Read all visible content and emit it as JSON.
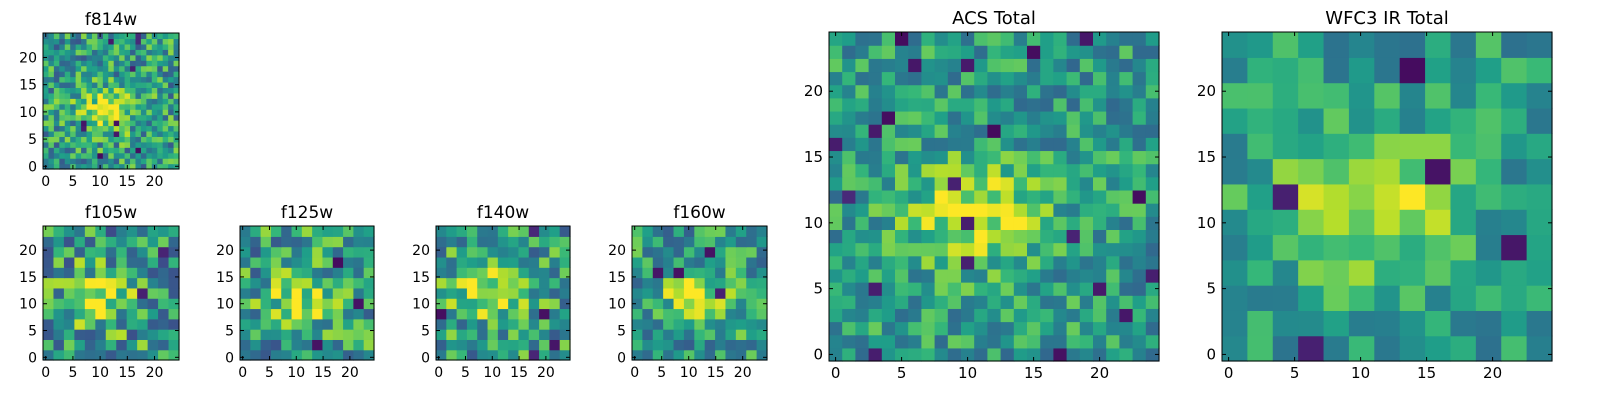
{
  "chart_data": [
    {
      "type": "heatmap",
      "title": "f814w",
      "xticks": [
        "0",
        "5",
        "10",
        "15",
        "20"
      ],
      "yticks": [
        "0",
        "5",
        "10",
        "15",
        "20"
      ],
      "xlim": [
        0,
        25
      ],
      "ylim": [
        0,
        25
      ],
      "grid": "25x25",
      "colormap": "viridis",
      "source_center": [
        12,
        11
      ],
      "source_width": 3.5,
      "noise": 0.28,
      "seed": 11
    },
    {
      "type": "heatmap",
      "title": "f105w",
      "xticks": [
        "0",
        "5",
        "10",
        "15",
        "20"
      ],
      "yticks": [
        "0",
        "5",
        "10",
        "15",
        "20"
      ],
      "xlim": [
        0,
        25
      ],
      "ylim": [
        0,
        25
      ],
      "grid": "13x13",
      "colormap": "viridis",
      "source_center": [
        11,
        12
      ],
      "source_width": 4,
      "noise": 0.32,
      "seed": 23
    },
    {
      "type": "heatmap",
      "title": "f125w",
      "xticks": [
        "0",
        "5",
        "10",
        "15",
        "20"
      ],
      "yticks": [
        "0",
        "5",
        "10",
        "15",
        "20"
      ],
      "xlim": [
        0,
        25
      ],
      "ylim": [
        0,
        25
      ],
      "grid": "13x13",
      "colormap": "viridis",
      "source_center": [
        11,
        11
      ],
      "source_width": 4,
      "noise": 0.3,
      "seed": 37
    },
    {
      "type": "heatmap",
      "title": "f140w",
      "xticks": [
        "0",
        "5",
        "10",
        "15",
        "20"
      ],
      "yticks": [
        "0",
        "5",
        "10",
        "15",
        "20"
      ],
      "xlim": [
        0,
        25
      ],
      "ylim": [
        0,
        25
      ],
      "grid": "13x13",
      "colormap": "viridis",
      "source_center": [
        10,
        13
      ],
      "source_width": 4.5,
      "noise": 0.28,
      "seed": 41
    },
    {
      "type": "heatmap",
      "title": "f160w",
      "xticks": [
        "0",
        "5",
        "10",
        "15",
        "20"
      ],
      "yticks": [
        "0",
        "5",
        "10",
        "15",
        "20"
      ],
      "xlim": [
        0,
        25
      ],
      "ylim": [
        0,
        25
      ],
      "grid": "13x13",
      "colormap": "viridis",
      "source_center": [
        12,
        12
      ],
      "source_width": 4,
      "noise": 0.26,
      "seed": 53
    },
    {
      "type": "heatmap",
      "title": "ACS Total",
      "xticks": [
        "0",
        "5",
        "10",
        "15",
        "20"
      ],
      "yticks": [
        "0",
        "5",
        "10",
        "15",
        "20"
      ],
      "xlim": [
        0,
        25
      ],
      "ylim": [
        0,
        25
      ],
      "grid": "25x25",
      "colormap": "viridis",
      "source_center": [
        11,
        11
      ],
      "source_width": 3.5,
      "noise": 0.22,
      "seed": 67
    },
    {
      "type": "heatmap",
      "title": "WFC3 IR Total",
      "xticks": [
        "0",
        "5",
        "10",
        "15",
        "20"
      ],
      "yticks": [
        "0",
        "5",
        "10",
        "15",
        "20"
      ],
      "xlim": [
        0,
        25
      ],
      "ylim": [
        0,
        25
      ],
      "grid": "13x13",
      "colormap": "viridis",
      "source_center": [
        11,
        12
      ],
      "source_width": 4.5,
      "noise": 0.18,
      "seed": 79
    }
  ]
}
